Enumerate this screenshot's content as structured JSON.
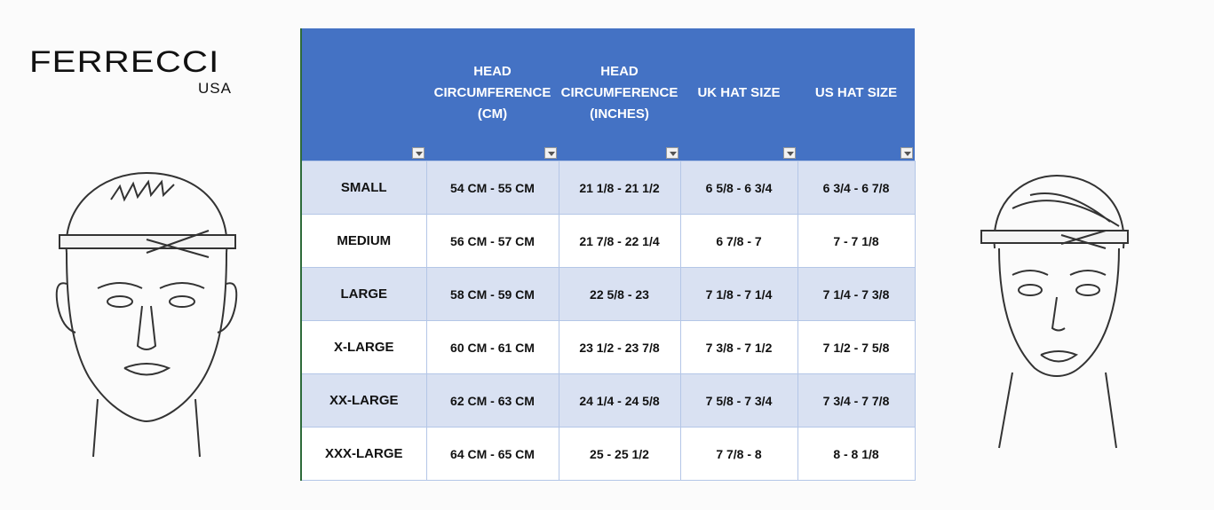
{
  "logo": {
    "brand": "FERRECCI",
    "sub": "USA"
  },
  "table": {
    "headers": [
      "",
      "HEAD CIRCUMFERENCE (CM)",
      "HEAD CIRCUMFERENCE (INCHES)",
      "UK HAT SIZE",
      "US HAT SIZE"
    ],
    "header_fill": "#4472c4",
    "rows": [
      [
        "SMALL",
        "54 CM - 55 CM",
        "21 1/8 - 21 1/2",
        "6 5/8 - 6 3/4",
        "6 3/4 - 6 7/8"
      ],
      [
        "MEDIUM",
        "56 CM - 57 CM",
        "21 7/8 - 22 1/4",
        "6 7/8 - 7",
        "7 - 7 1/8"
      ],
      [
        "LARGE",
        "58 CM - 59 CM",
        "22 5/8 - 23",
        "7 1/8 - 7 1/4",
        "7 1/4 - 7 3/8"
      ],
      [
        "X-LARGE",
        "60 CM - 61 CM",
        "23 1/2 - 23 7/8",
        "7 3/8 - 7 1/2",
        "7 1/2 - 7 5/8"
      ],
      [
        "XX-LARGE",
        "62 CM - 63 CM",
        "24 1/4 - 24 5/8",
        "7 5/8 - 7 3/4",
        "7 3/4 - 7 7/8"
      ],
      [
        "XXX-LARGE",
        "64 CM - 65 CM",
        "25 - 25 1/2",
        "7 7/8 - 8",
        "8 - 8 1/8"
      ]
    ]
  }
}
